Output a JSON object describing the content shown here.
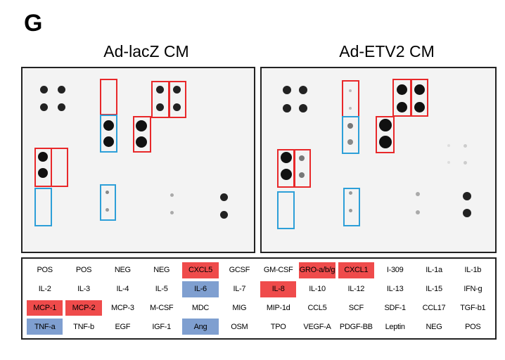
{
  "panel_label": "G",
  "panels": [
    {
      "title": "Ad-lacZ CM"
    },
    {
      "title": "Ad-ETV2 CM"
    }
  ],
  "legend": {
    "rows": [
      [
        "POS",
        "POS",
        "NEG",
        "NEG",
        "CXCL5",
        "GCSF",
        "GM-CSF",
        "GRO-a/b/g",
        "CXCL1",
        "I-309",
        "IL-1a",
        "IL-1b"
      ],
      [
        "IL-2",
        "IL-3",
        "IL-4",
        "IL-5",
        "IL-6",
        "IL-7",
        "IL-8",
        "IL-10",
        "IL-12",
        "IL-13",
        "IL-15",
        "IFN-g"
      ],
      [
        "MCP-1",
        "MCP-2",
        "MCP-3",
        "M-CSF",
        "MDC",
        "MIG",
        "MIP-1d",
        "CCL5",
        "SCF",
        "SDF-1",
        "CCL17",
        "TGF-b1"
      ],
      [
        "TNF-a",
        "TNF-b",
        "EGF",
        "IGF-1",
        "Ang",
        "OSM",
        "TPO",
        "VEGF-A",
        "PDGF-BB",
        "Leptin",
        "NEG",
        "POS"
      ]
    ],
    "highlight_red": [
      "CXCL5",
      "GRO-a/b/g",
      "CXCL1",
      "IL-8",
      "MCP-1",
      "MCP-2"
    ],
    "highlight_blue": [
      "IL-6",
      "TNF-a",
      "Ang"
    ],
    "colors": {
      "red": "#ef4b4b",
      "blue": "#7f9fd0"
    }
  }
}
